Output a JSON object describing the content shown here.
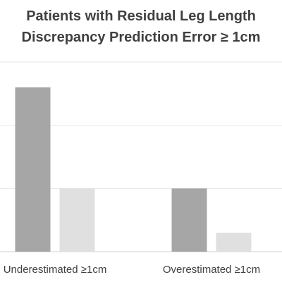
{
  "chart_data": {
    "type": "bar",
    "title_lines": [
      "Patients with Residual Leg Length",
      "Discrepancy Prediction Error ≥ 1cm"
    ],
    "categories": [
      "Underestimated ≥1cm",
      "Overestimated ≥1cm"
    ],
    "series": [
      {
        "values": [
          26,
          10
        ],
        "color": "#a6a6a6"
      },
      {
        "values": [
          10,
          3
        ],
        "color": "#e0e0e0"
      }
    ],
    "ylim": [
      0,
      30
    ],
    "grid": true,
    "gridlines": [
      0,
      10,
      20,
      30
    ],
    "xlabel": "",
    "ylabel": ""
  }
}
